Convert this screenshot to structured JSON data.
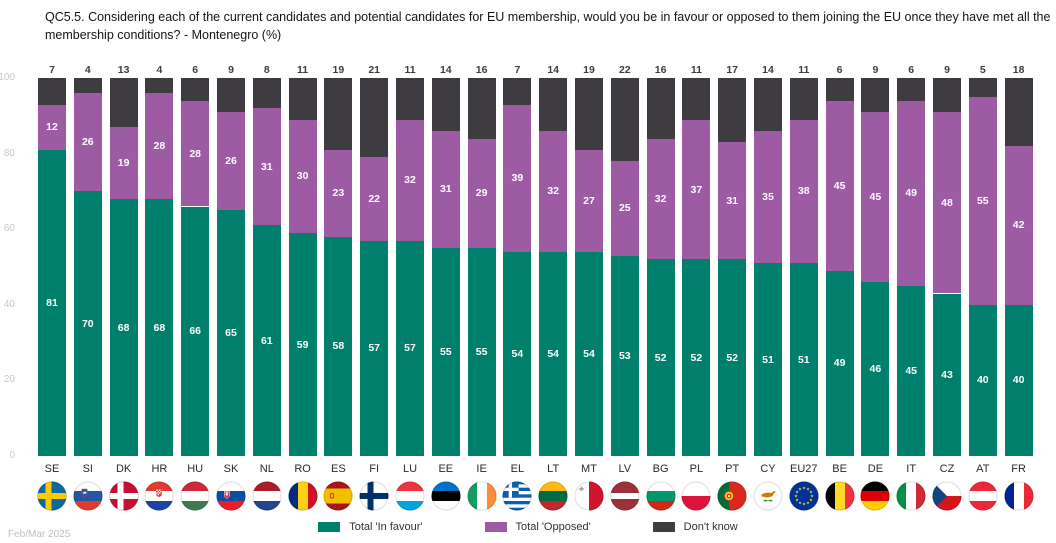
{
  "title": "QC5.5. Considering each of the current candidates and potential candidates for EU membership, would you be in favour or opposed to them joining the EU once they have met all the membership conditions? - Montenegro (%)",
  "footnote": "Feb/Mar 2025",
  "colors": {
    "in_favour": "#00806C",
    "opposed": "#9C5BA3",
    "dont_know": "#3E3C40"
  },
  "legend": [
    {
      "label": "Total 'In favour'",
      "color_key": "in_favour"
    },
    {
      "label": "Total 'Opposed'",
      "color_key": "opposed"
    },
    {
      "label": "Don't know",
      "color_key": "dont_know"
    }
  ],
  "y_axis": {
    "ticks": [
      100,
      80,
      60,
      40,
      20,
      0
    ]
  },
  "chart_data": {
    "type": "bar",
    "stacked": true,
    "title": "QC5.5. Considering each of the current candidates and potential candidates for EU membership, would you be in favour or opposed to them joining the EU once they have met all the membership conditions? - Montenegro (%)",
    "categories": [
      "SE",
      "SI",
      "DK",
      "HR",
      "HU",
      "SK",
      "NL",
      "RO",
      "ES",
      "FI",
      "LU",
      "EE",
      "IE",
      "EL",
      "LT",
      "MT",
      "LV",
      "BG",
      "PL",
      "PT",
      "CY",
      "EU27",
      "BE",
      "DE",
      "IT",
      "CZ",
      "AT",
      "FR"
    ],
    "series": [
      {
        "name": "Total 'In favour'",
        "color_key": "in_favour",
        "values": [
          81,
          70,
          68,
          68,
          66,
          65,
          61,
          59,
          58,
          57,
          57,
          55,
          55,
          54,
          54,
          54,
          53,
          52,
          52,
          52,
          51,
          51,
          49,
          46,
          45,
          43,
          40,
          40
        ]
      },
      {
        "name": "Total 'Opposed'",
        "color_key": "opposed",
        "values": [
          12,
          26,
          19,
          28,
          28,
          26,
          31,
          30,
          23,
          22,
          32,
          31,
          29,
          39,
          32,
          27,
          25,
          32,
          37,
          31,
          35,
          38,
          45,
          45,
          49,
          48,
          55,
          42
        ]
      },
      {
        "name": "Don't know",
        "color_key": "dont_know",
        "values": [
          7,
          4,
          13,
          4,
          6,
          9,
          8,
          11,
          19,
          21,
          11,
          14,
          16,
          7,
          14,
          19,
          22,
          16,
          11,
          17,
          14,
          11,
          6,
          9,
          6,
          9,
          5,
          18
        ]
      }
    ],
    "ylim": [
      0,
      100
    ],
    "grid": false,
    "legend_position": "bottom"
  },
  "flags": {
    "SE": {
      "kind": "nordic",
      "bg": "#0A6AA1",
      "cross": "#FECB00"
    },
    "SI": {
      "kind": "h",
      "stripes": [
        [
          "#FFFFFF",
          1
        ],
        [
          "#2456A4",
          1
        ],
        [
          "#E03C31",
          1
        ]
      ],
      "emblem": "si"
    },
    "DK": {
      "kind": "nordic",
      "bg": "#C8102E",
      "cross": "#FFFFFF"
    },
    "HR": {
      "kind": "h",
      "stripes": [
        [
          "#E03C31",
          1
        ],
        [
          "#FFFFFF",
          1
        ],
        [
          "#1B44A6",
          1
        ]
      ],
      "emblem": "hr"
    },
    "HU": {
      "kind": "h",
      "stripes": [
        [
          "#CE2939",
          1
        ],
        [
          "#FFFFFF",
          1
        ],
        [
          "#3E7C4F",
          1
        ]
      ]
    },
    "SK": {
      "kind": "h",
      "stripes": [
        [
          "#FFFFFF",
          1
        ],
        [
          "#0B4EA2",
          1
        ],
        [
          "#EE1C25",
          1
        ]
      ],
      "emblem": "sk"
    },
    "NL": {
      "kind": "h",
      "stripes": [
        [
          "#AE1C28",
          1
        ],
        [
          "#FFFFFF",
          1
        ],
        [
          "#21468B",
          1
        ]
      ]
    },
    "RO": {
      "kind": "v",
      "stripes": [
        [
          "#002B7F",
          1
        ],
        [
          "#FCD116",
          1
        ],
        [
          "#CE1126",
          1
        ]
      ]
    },
    "ES": {
      "kind": "h",
      "stripes": [
        [
          "#AA151B",
          1
        ],
        [
          "#F1BF00",
          2
        ],
        [
          "#AA151B",
          1
        ]
      ],
      "emblem": "es"
    },
    "FI": {
      "kind": "nordic",
      "bg": "#FFFFFF",
      "cross": "#002F6C"
    },
    "LU": {
      "kind": "h",
      "stripes": [
        [
          "#EF3340",
          1
        ],
        [
          "#FFFFFF",
          1
        ],
        [
          "#00A3E0",
          1
        ]
      ]
    },
    "EE": {
      "kind": "h",
      "stripes": [
        [
          "#0072CE",
          1
        ],
        [
          "#000000",
          1
        ],
        [
          "#FFFFFF",
          1
        ]
      ]
    },
    "IE": {
      "kind": "v",
      "stripes": [
        [
          "#169B62",
          1
        ],
        [
          "#FFFFFF",
          1
        ],
        [
          "#FF8C3B",
          1
        ]
      ]
    },
    "EL": {
      "kind": "greece",
      "blue": "#0D5EAF"
    },
    "LT": {
      "kind": "h",
      "stripes": [
        [
          "#FDB913",
          1
        ],
        [
          "#006A44",
          1
        ],
        [
          "#C1272D",
          1
        ]
      ]
    },
    "MT": {
      "kind": "v",
      "stripes": [
        [
          "#FFFFFF",
          1
        ],
        [
          "#CF142B",
          1
        ]
      ],
      "emblem": "mt"
    },
    "LV": {
      "kind": "h",
      "stripes": [
        [
          "#9E3039",
          2
        ],
        [
          "#FFFFFF",
          1
        ],
        [
          "#9E3039",
          2
        ]
      ]
    },
    "BG": {
      "kind": "h",
      "stripes": [
        [
          "#FFFFFF",
          1
        ],
        [
          "#00966E",
          1
        ],
        [
          "#D62612",
          1
        ]
      ]
    },
    "PL": {
      "kind": "h",
      "stripes": [
        [
          "#FFFFFF",
          1
        ],
        [
          "#DC143C",
          1
        ]
      ]
    },
    "PT": {
      "kind": "v",
      "stripes": [
        [
          "#046A38",
          2
        ],
        [
          "#DA291C",
          3
        ]
      ],
      "emblem": "pt"
    },
    "CY": {
      "kind": "cy"
    },
    "EU27": {
      "kind": "eu",
      "bg": "#003399",
      "star": "#FFCC00"
    },
    "BE": {
      "kind": "v",
      "stripes": [
        [
          "#000000",
          1
        ],
        [
          "#FDDA24",
          1
        ],
        [
          "#EF3340",
          1
        ]
      ]
    },
    "DE": {
      "kind": "h",
      "stripes": [
        [
          "#000000",
          1
        ],
        [
          "#DD0000",
          1
        ],
        [
          "#FFCE00",
          1
        ]
      ]
    },
    "IT": {
      "kind": "v",
      "stripes": [
        [
          "#009246",
          1
        ],
        [
          "#FFFFFF",
          1
        ],
        [
          "#CE2B37",
          1
        ]
      ]
    },
    "CZ": {
      "kind": "cz"
    },
    "AT": {
      "kind": "h",
      "stripes": [
        [
          "#ED2939",
          1
        ],
        [
          "#FFFFFF",
          1
        ],
        [
          "#ED2939",
          1
        ]
      ]
    },
    "FR": {
      "kind": "v",
      "stripes": [
        [
          "#002395",
          1
        ],
        [
          "#FFFFFF",
          1
        ],
        [
          "#ED2939",
          1
        ]
      ]
    }
  }
}
